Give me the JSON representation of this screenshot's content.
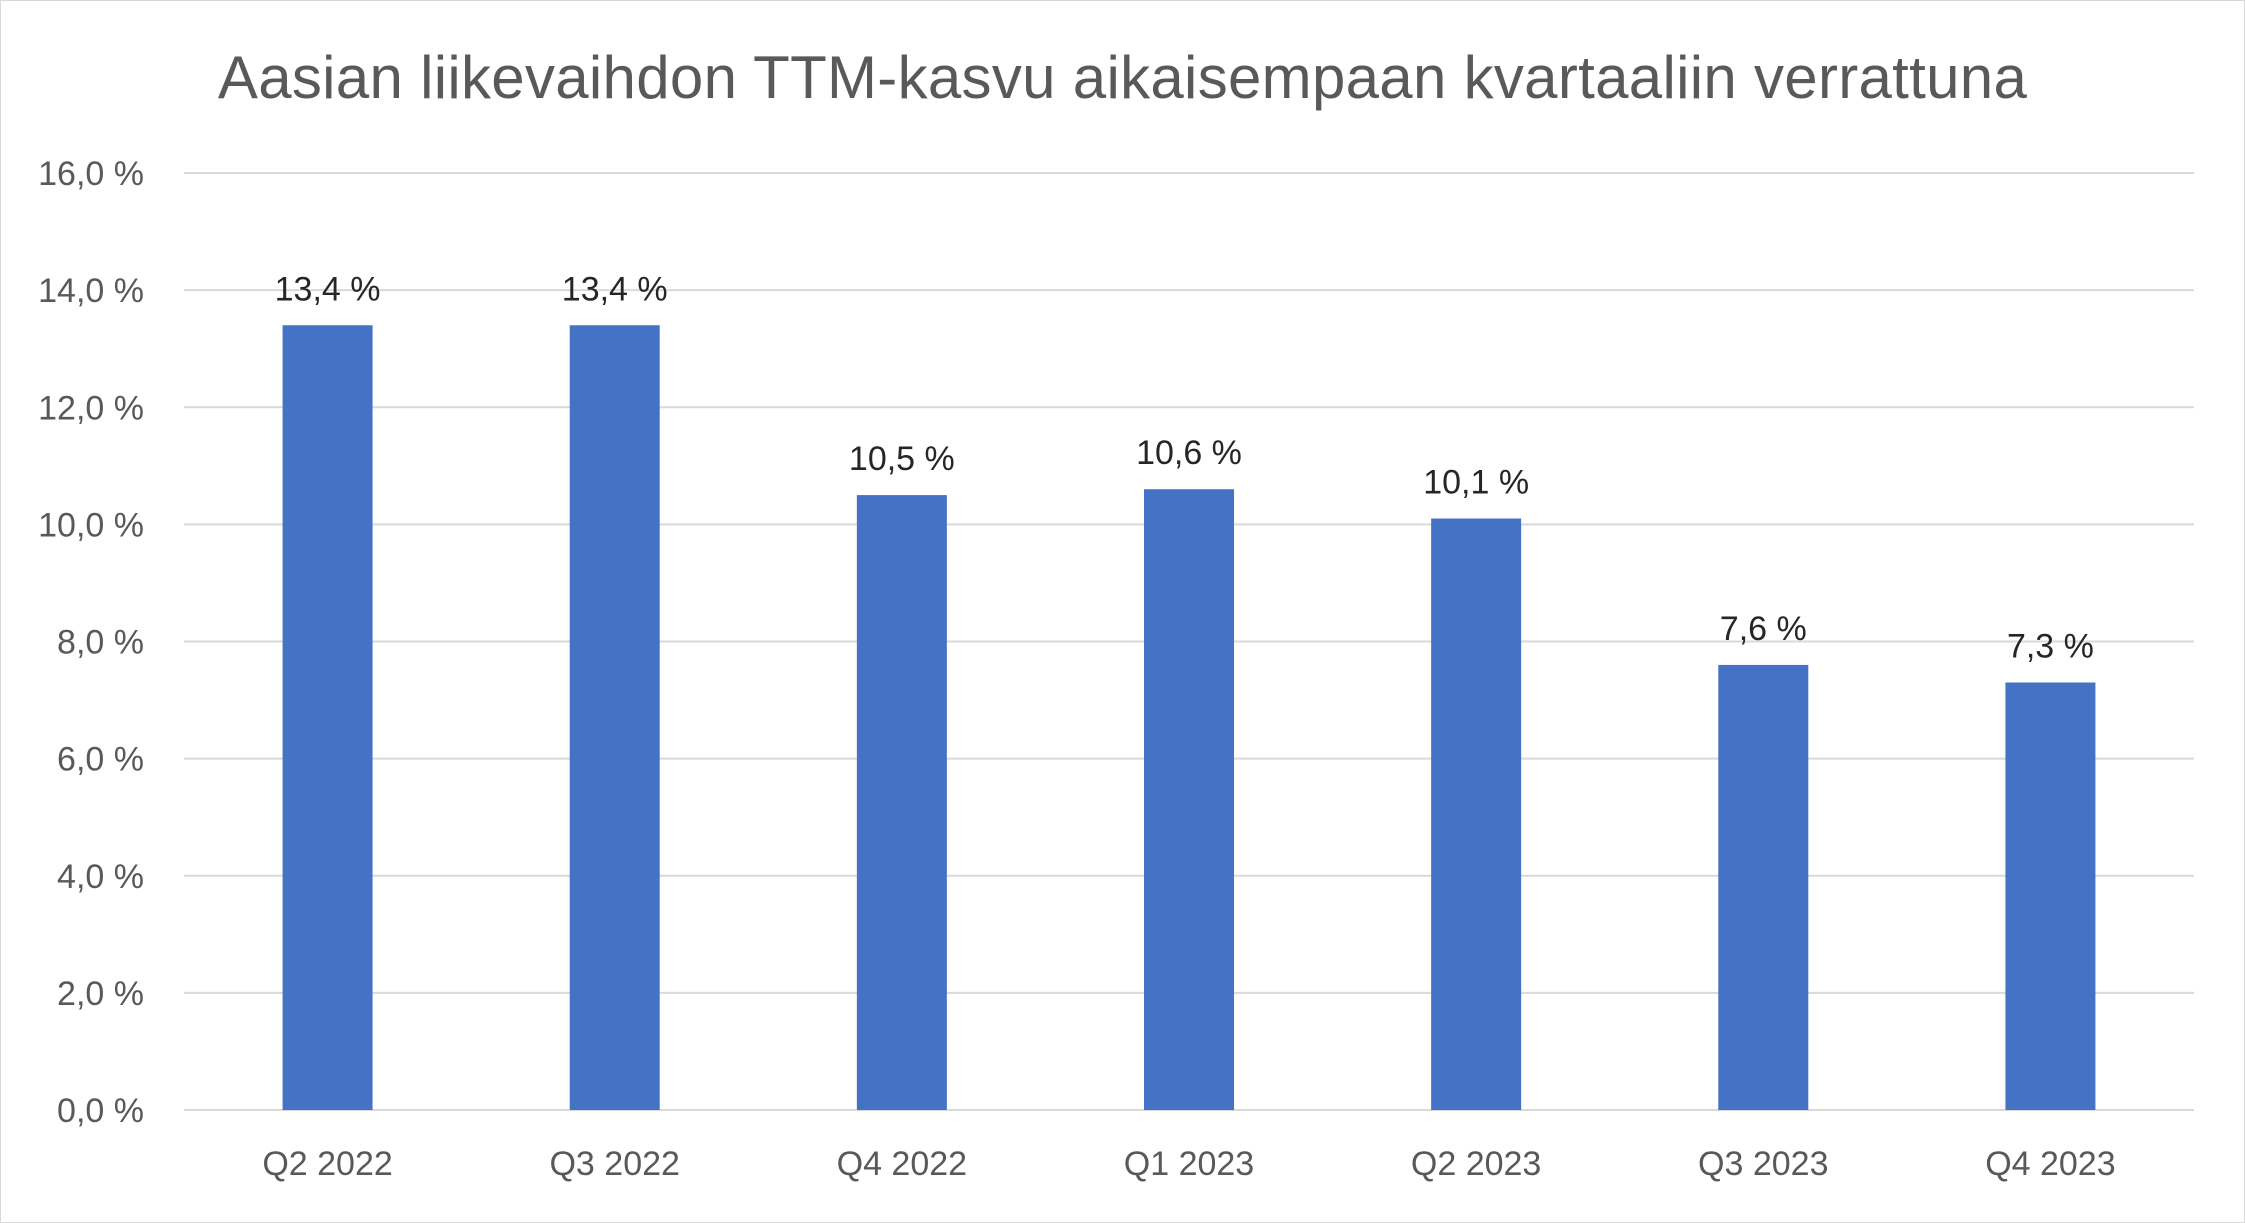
{
  "chart_data": {
    "type": "bar",
    "title": "Aasian liikevaihdon TTM-kasvu aikaisempaan kvartaaliin verrattuna",
    "xlabel": "",
    "ylabel": "",
    "categories": [
      "Q2 2022",
      "Q3 2022",
      "Q4 2022",
      "Q1 2023",
      "Q2 2023",
      "Q3 2023",
      "Q4 2023"
    ],
    "values": [
      13.4,
      13.4,
      10.5,
      10.6,
      10.1,
      7.6,
      7.3
    ],
    "data_labels": [
      "13,4 %",
      "13,4 %",
      "10,5 %",
      "10,6 %",
      "10,1 %",
      "7,6 %",
      "7,3 %"
    ],
    "ylim": [
      0,
      16
    ],
    "yticks": [
      0,
      2,
      4,
      6,
      8,
      10,
      12,
      14,
      16
    ],
    "ytick_labels": [
      "0,0 %",
      "2,0 %",
      "4,0 %",
      "6,0 %",
      "8,0 %",
      "10,0 %",
      "12,0 %",
      "14,0 %",
      "16,0 %"
    ],
    "grid": true,
    "legend": "none",
    "colors": {
      "bar": "#4472c4",
      "grid": "#d9d9d9",
      "axis_text": "#595959",
      "label_text": "#262626"
    }
  }
}
